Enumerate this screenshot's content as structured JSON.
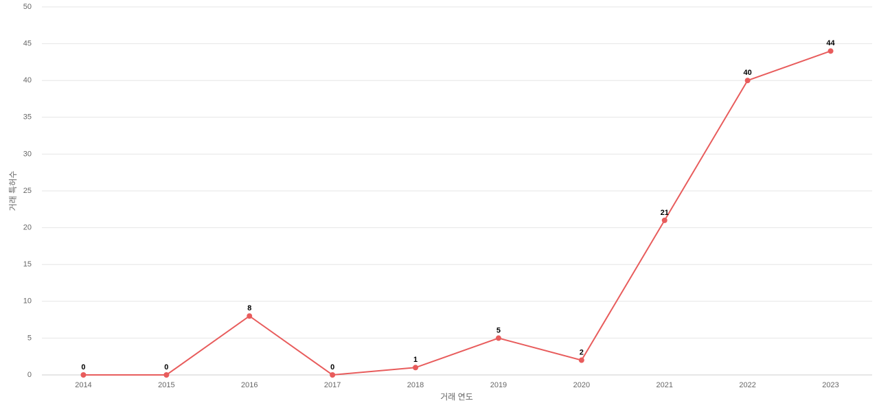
{
  "chart_data": {
    "type": "line",
    "x_label": "거래 연도",
    "y_label": "거래 특허수",
    "categories": [
      "2014",
      "2015",
      "2016",
      "2017",
      "2018",
      "2019",
      "2020",
      "2021",
      "2022",
      "2023"
    ],
    "series": [
      {
        "color": "#e85c5c",
        "values": [
          0,
          0,
          8,
          0,
          1,
          5,
          2,
          21,
          40,
          44
        ]
      }
    ],
    "ylim": [
      0,
      50
    ],
    "yticks": [
      0,
      5,
      10,
      15,
      20,
      25,
      30,
      35,
      40,
      45,
      50
    ],
    "grid": true
  }
}
